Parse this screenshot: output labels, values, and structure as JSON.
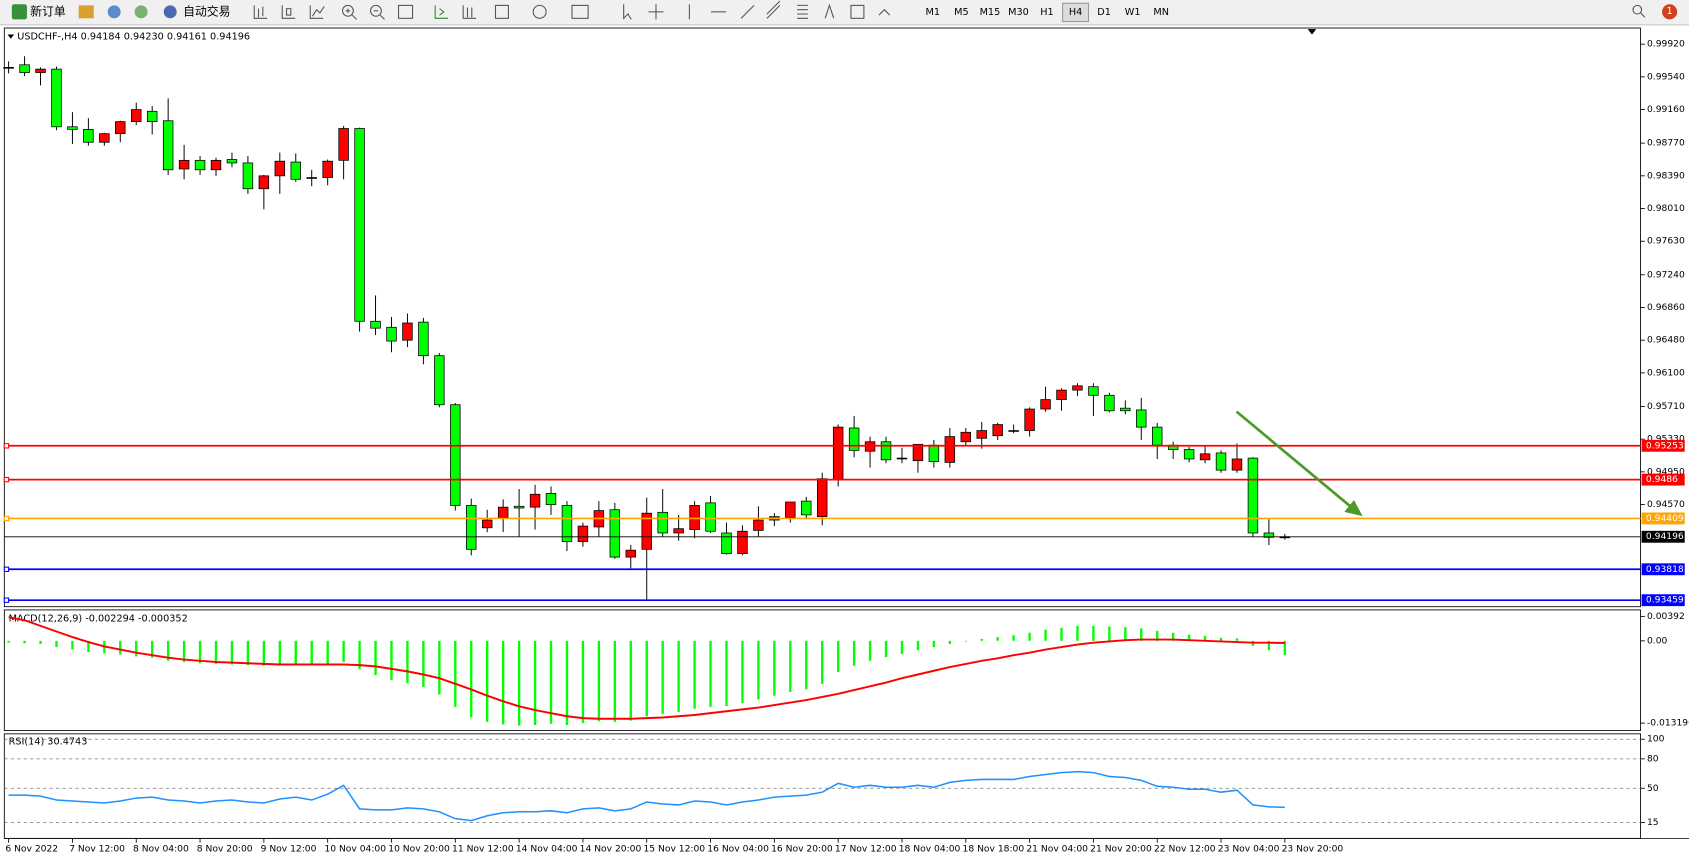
{
  "toolbar": {
    "new_order": "新订单",
    "auto_trading": "自动交易",
    "timeframes": [
      "M1",
      "M5",
      "M15",
      "M30",
      "H1",
      "H4",
      "D1",
      "W1",
      "MN"
    ],
    "active_timeframe": "H4",
    "badge": "1"
  },
  "chart_data": [
    {
      "type": "candlestick",
      "title": "USDCHF-,H4  0.94184 0.94230 0.94161 0.94196",
      "up_color": "#ff0000",
      "down_color": "#00ff00",
      "ylim": [
        0.93396,
        1.00095
      ],
      "yticks": [
        {
          "value": 0.9992,
          "label": "0.99920"
        },
        {
          "value": 0.9954,
          "label": "0.99540"
        },
        {
          "value": 0.9916,
          "label": "0.99160"
        },
        {
          "value": 0.9877,
          "label": "0.98770"
        },
        {
          "value": 0.9839,
          "label": "0.98390"
        },
        {
          "value": 0.9801,
          "label": "0.98010"
        },
        {
          "value": 0.9763,
          "label": "0.97630"
        },
        {
          "value": 0.9724,
          "label": "0.97240"
        },
        {
          "value": 0.9686,
          "label": "0.96860"
        },
        {
          "value": 0.9648,
          "label": "0.96480"
        },
        {
          "value": 0.961,
          "label": "0.96100"
        },
        {
          "value": 0.9571,
          "label": "0.95710"
        },
        {
          "value": 0.9533,
          "label": "0.95330"
        },
        {
          "value": 0.9495,
          "label": "0.94950"
        },
        {
          "value": 0.9457,
          "label": "0.94570"
        }
      ],
      "levels": [
        {
          "value": 0.95253,
          "color": "#ff0000"
        },
        {
          "value": 0.9486,
          "color": "#ff0000"
        },
        {
          "value": 0.94409,
          "color": "#ffa500"
        },
        {
          "value": 0.94196,
          "color": "#000000"
        },
        {
          "value": 0.93818,
          "color": "#0000ff"
        },
        {
          "value": 0.93459,
          "color": "#0000ff"
        }
      ],
      "open": [
        0.9965,
        0.9968,
        0.9959,
        0.9963,
        0.9896,
        0.9893,
        0.9878,
        0.9888,
        0.9902,
        0.9914,
        0.9903,
        0.9847,
        0.9857,
        0.9846,
        0.9858,
        0.9854,
        0.9824,
        0.9839,
        0.9855,
        0.9837,
        0.9837,
        0.9857,
        0.9894,
        0.967,
        0.9663,
        0.9648,
        0.9669,
        0.963,
        0.9573,
        0.9456,
        0.943,
        0.9442,
        0.9455,
        0.9454,
        0.947,
        0.9456,
        0.9414,
        0.9431,
        0.9451,
        0.9396,
        0.9405,
        0.9448,
        0.9424,
        0.9428,
        0.9459,
        0.9424,
        0.94,
        0.9427,
        0.9439,
        0.9442,
        0.9461,
        0.9443,
        0.9486,
        0.9546,
        0.9519,
        0.953,
        0.9511,
        0.9508,
        0.9526,
        0.9506,
        0.953,
        0.9534,
        0.9537,
        0.9543,
        0.9543,
        0.9568,
        0.9579,
        0.959,
        0.9594,
        0.9584,
        0.9569,
        0.9567,
        0.9547,
        0.9526,
        0.9521,
        0.9509,
        0.9517,
        0.9497,
        0.9511,
        0.9424,
        0.94184
      ],
      "high": [
        0.9972,
        0.9978,
        0.9965,
        0.9966,
        0.9913,
        0.9906,
        0.9889,
        0.9903,
        0.9924,
        0.992,
        0.9929,
        0.9875,
        0.9862,
        0.986,
        0.9866,
        0.9862,
        0.984,
        0.9866,
        0.9865,
        0.9846,
        0.9858,
        0.9897,
        0.9895,
        0.97,
        0.9675,
        0.9679,
        0.9674,
        0.9633,
        0.9575,
        0.9464,
        0.9451,
        0.9463,
        0.9475,
        0.948,
        0.9478,
        0.9461,
        0.9436,
        0.9461,
        0.9459,
        0.941,
        0.9465,
        0.9475,
        0.9445,
        0.9461,
        0.9467,
        0.9436,
        0.9433,
        0.9455,
        0.9447,
        0.946,
        0.9466,
        0.9494,
        0.955,
        0.956,
        0.9536,
        0.9536,
        0.9523,
        0.9525,
        0.9532,
        0.9546,
        0.9546,
        0.9553,
        0.9552,
        0.955,
        0.957,
        0.9594,
        0.9592,
        0.9598,
        0.9598,
        0.9587,
        0.9578,
        0.9581,
        0.9552,
        0.953,
        0.9524,
        0.9525,
        0.952,
        0.9528,
        0.9512,
        0.9441,
        0.9423
      ],
      "low": [
        0.9958,
        0.9955,
        0.9944,
        0.9892,
        0.9876,
        0.9874,
        0.9874,
        0.9878,
        0.9898,
        0.9887,
        0.984,
        0.9835,
        0.984,
        0.9839,
        0.9849,
        0.9818,
        0.98,
        0.9818,
        0.9832,
        0.9827,
        0.9828,
        0.9835,
        0.9658,
        0.9654,
        0.9634,
        0.964,
        0.962,
        0.957,
        0.945,
        0.9398,
        0.9425,
        0.9425,
        0.942,
        0.9428,
        0.9445,
        0.9403,
        0.9408,
        0.942,
        0.9394,
        0.9383,
        0.9346,
        0.942,
        0.9415,
        0.9418,
        0.9424,
        0.9399,
        0.9398,
        0.942,
        0.9432,
        0.9436,
        0.944,
        0.9433,
        0.9478,
        0.9512,
        0.95,
        0.9505,
        0.9505,
        0.9494,
        0.95,
        0.95,
        0.9526,
        0.9522,
        0.9532,
        0.954,
        0.9536,
        0.9565,
        0.9566,
        0.9583,
        0.956,
        0.9564,
        0.9562,
        0.9532,
        0.951,
        0.951,
        0.9506,
        0.9505,
        0.9494,
        0.9494,
        0.942,
        0.941,
        0.94161
      ],
      "close": [
        0.9964,
        0.9959,
        0.9963,
        0.9896,
        0.9893,
        0.9878,
        0.9888,
        0.9902,
        0.9916,
        0.9902,
        0.9846,
        0.9857,
        0.9846,
        0.9857,
        0.9854,
        0.9824,
        0.9839,
        0.9856,
        0.9835,
        0.9836,
        0.9856,
        0.9894,
        0.967,
        0.9662,
        0.9647,
        0.9668,
        0.963,
        0.9573,
        0.9456,
        0.9405,
        0.9439,
        0.9454,
        0.9453,
        0.9469,
        0.9457,
        0.9414,
        0.9432,
        0.945,
        0.9396,
        0.9404,
        0.9447,
        0.9424,
        0.9429,
        0.9456,
        0.9426,
        0.94,
        0.9426,
        0.9439,
        0.9443,
        0.946,
        0.9445,
        0.9487,
        0.9547,
        0.952,
        0.953,
        0.9509,
        0.951,
        0.9527,
        0.9507,
        0.9536,
        0.9541,
        0.9543,
        0.955,
        0.9543,
        0.9568,
        0.9579,
        0.959,
        0.9595,
        0.9584,
        0.9566,
        0.9566,
        0.9547,
        0.9526,
        0.9521,
        0.951,
        0.9516,
        0.9497,
        0.951,
        0.9424,
        0.9419,
        0.94196
      ]
    },
    {
      "type": "macd",
      "title": "MACD(12,26,9) -0.002294 -0.000352",
      "ylim": [
        -0.01423,
        0.00496
      ],
      "yticks": [
        0.00392,
        {
          "value": 0,
          "label": "0.00"
        },
        -0.013196
      ],
      "histogram": {
        "color": "#00ff00",
        "values": [
          -0.0003,
          -0.0004,
          -0.0005,
          -0.001,
          -0.0014,
          -0.0018,
          -0.002,
          -0.0022,
          -0.0025,
          -0.0027,
          -0.0032,
          -0.0034,
          -0.0036,
          -0.0037,
          -0.0038,
          -0.0039,
          -0.004,
          -0.004,
          -0.0039,
          -0.0039,
          -0.0037,
          -0.0034,
          -0.0045,
          -0.0055,
          -0.0063,
          -0.0068,
          -0.0074,
          -0.0086,
          -0.0106,
          -0.0123,
          -0.013,
          -0.0134,
          -0.0136,
          -0.0135,
          -0.0133,
          -0.0135,
          -0.0132,
          -0.0129,
          -0.013,
          -0.0128,
          -0.0121,
          -0.0117,
          -0.0114,
          -0.0109,
          -0.0106,
          -0.0105,
          -0.01,
          -0.0094,
          -0.0088,
          -0.0082,
          -0.0078,
          -0.0069,
          -0.005,
          -0.004,
          -0.0032,
          -0.0026,
          -0.0021,
          -0.0015,
          -0.001,
          -0.0005,
          -0.0001,
          0.0003,
          0.0006,
          0.0009,
          0.0013,
          0.0018,
          0.0021,
          0.0024,
          0.0024,
          0.0023,
          0.0022,
          0.002,
          0.0016,
          0.0013,
          0.001,
          0.0008,
          0.0005,
          0.0004,
          -0.0008,
          -0.0015,
          -0.002294
        ]
      },
      "signal": {
        "color": "#ff0000",
        "values": [
          0.0038,
          0.0033,
          0.0024,
          0.0015,
          0.0006,
          -0.0002,
          -0.0009,
          -0.0014,
          -0.0019,
          -0.0023,
          -0.0027,
          -0.003,
          -0.0032,
          -0.0034,
          -0.0035,
          -0.0036,
          -0.0037,
          -0.0038,
          -0.0038,
          -0.0038,
          -0.0038,
          -0.0038,
          -0.0039,
          -0.0041,
          -0.0045,
          -0.0049,
          -0.0054,
          -0.006,
          -0.0069,
          -0.0078,
          -0.0088,
          -0.0097,
          -0.0105,
          -0.0111,
          -0.0116,
          -0.0121,
          -0.0124,
          -0.0125,
          -0.0125,
          -0.0125,
          -0.0124,
          -0.0123,
          -0.0121,
          -0.0119,
          -0.0116,
          -0.0113,
          -0.011,
          -0.0107,
          -0.0103,
          -0.0099,
          -0.0095,
          -0.009,
          -0.0085,
          -0.0079,
          -0.0073,
          -0.0067,
          -0.006,
          -0.0054,
          -0.0048,
          -0.0042,
          -0.0037,
          -0.0032,
          -0.0028,
          -0.0023,
          -0.0019,
          -0.0014,
          -0.001,
          -0.0006,
          -0.0003,
          -0.0001,
          0.0001,
          0.0002,
          0.0002,
          0.0002,
          0.0001,
          0,
          -0.0001,
          -0.0002,
          -0.0003,
          -0.0003,
          -0.000352
        ]
      }
    },
    {
      "type": "rsi",
      "title": "RSI(14) 30.4743",
      "ylim": [
        0,
        100
      ],
      "yticks": [
        100,
        80,
        50,
        15
      ],
      "color": "#1e90ff",
      "values": [
        43,
        43,
        42,
        38,
        37,
        36,
        35,
        37,
        40,
        41,
        38,
        37,
        35,
        37,
        38,
        36,
        35,
        39,
        41,
        38,
        44,
        53,
        29,
        28,
        28,
        30,
        29,
        26,
        19,
        17,
        22,
        25,
        26,
        26,
        27,
        25,
        29,
        30,
        27,
        29,
        36,
        34,
        33,
        37,
        36,
        33,
        36,
        38,
        41,
        42,
        43,
        46,
        55,
        51,
        53,
        51,
        51,
        53,
        51,
        56,
        58,
        59,
        59,
        59,
        62,
        64,
        66,
        67,
        66,
        62,
        61,
        58,
        52,
        51,
        49,
        49,
        46,
        48,
        33,
        31,
        30.4743
      ],
      "categories": [
        "6 Nov 2022",
        null,
        null,
        null,
        "7 Nov 12:00",
        null,
        null,
        null,
        "8 Nov 04:00",
        null,
        null,
        null,
        "8 Nov 20:00",
        null,
        null,
        null,
        "9 Nov 12:00",
        null,
        null,
        null,
        "10 Nov 04:00",
        null,
        null,
        null,
        "10 Nov 20:00",
        null,
        null,
        null,
        "11 Nov 12:00",
        null,
        null,
        null,
        "14 Nov 04:00",
        null,
        null,
        null,
        "14 Nov 20:00",
        null,
        null,
        null,
        "15 Nov 12:00",
        null,
        null,
        null,
        "16 Nov 04:00",
        null,
        null,
        null,
        "16 Nov 20:00",
        null,
        null,
        null,
        "17 Nov 12:00",
        null,
        null,
        null,
        "18 Nov 04:00",
        null,
        null,
        null,
        "18 Nov 18:00",
        null,
        null,
        null,
        "21 Nov 04:00",
        null,
        null,
        null,
        "21 Nov 20:00",
        null,
        null,
        null,
        "22 Nov 12:00",
        null,
        null,
        null,
        "23 Nov 04:00",
        null,
        null,
        null,
        "23 Nov 20:00"
      ]
    }
  ]
}
